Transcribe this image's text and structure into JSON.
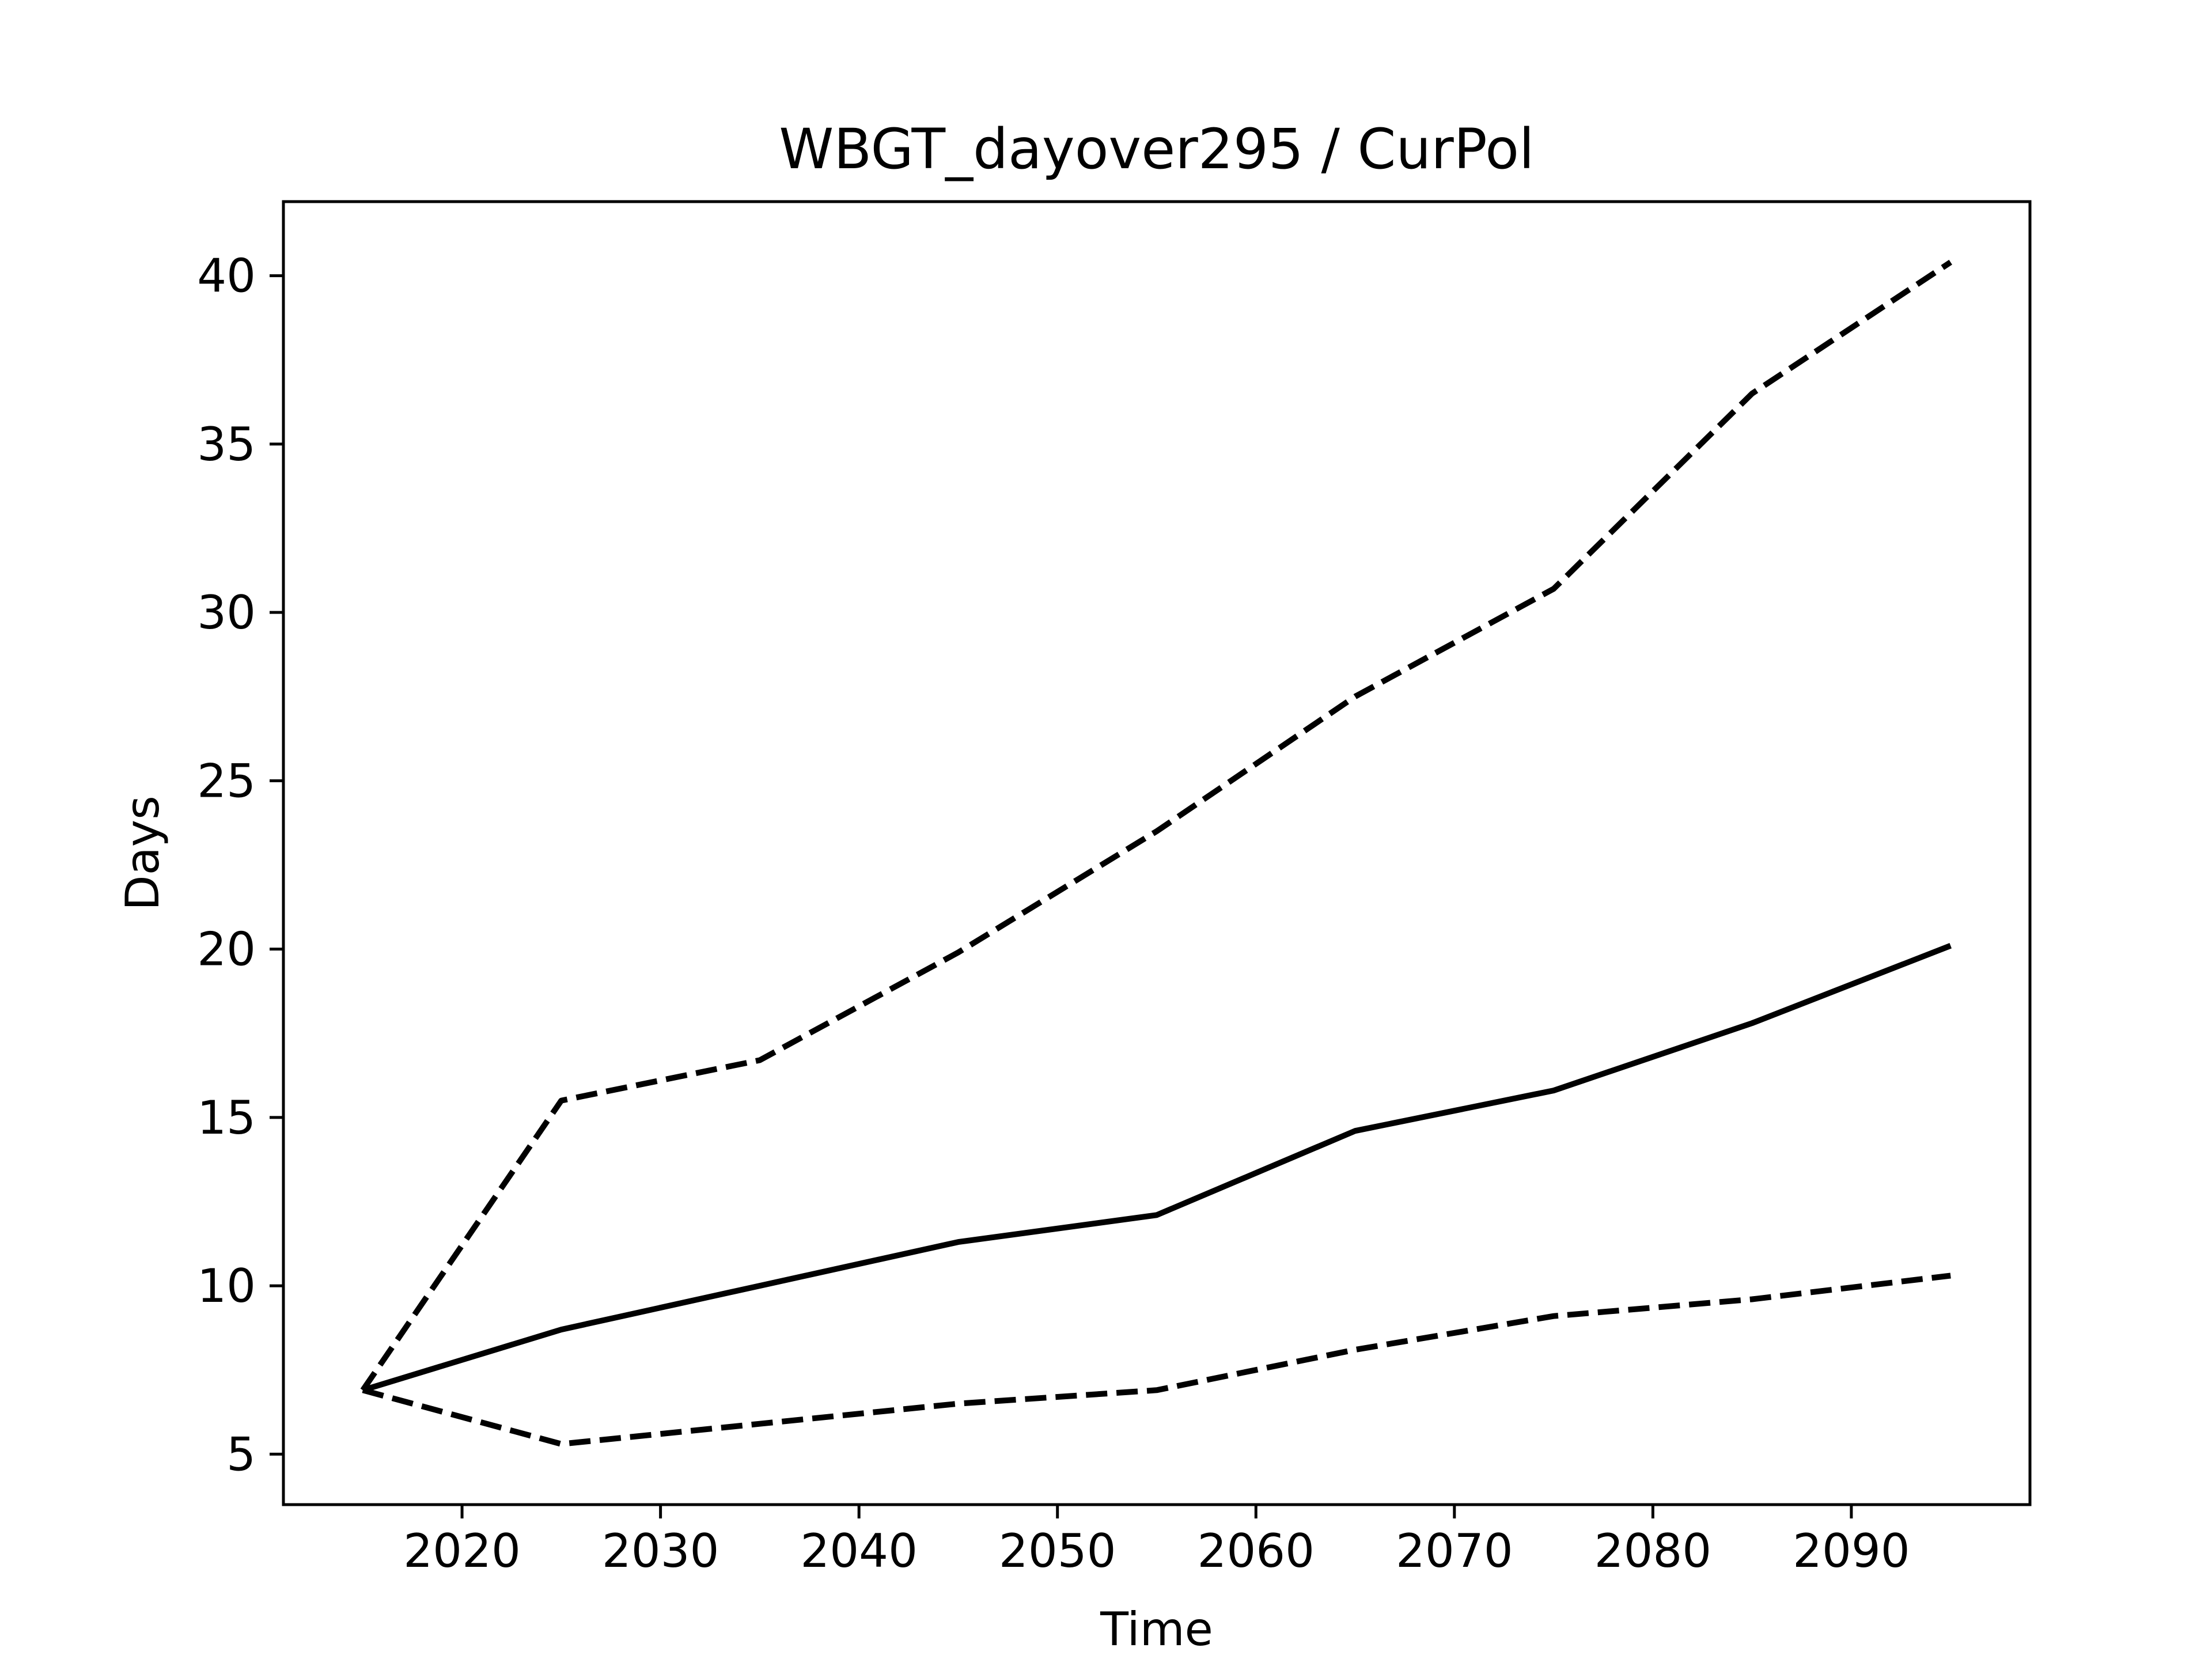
{
  "chart_data": {
    "type": "line",
    "title": "WBGT_dayover295 / CurPol",
    "xlabel": "Time",
    "ylabel": "Days",
    "xlim": [
      2011,
      2099
    ],
    "ylim": [
      3.5,
      42.2
    ],
    "x_ticks": [
      2020,
      2030,
      2040,
      2050,
      2060,
      2070,
      2080,
      2090
    ],
    "y_ticks": [
      5,
      10,
      15,
      20,
      25,
      30,
      35,
      40
    ],
    "grid": false,
    "legend": "none",
    "color": "#000000",
    "x": [
      2015,
      2025,
      2035,
      2045,
      2055,
      2065,
      2075,
      2085,
      2095
    ],
    "series": [
      {
        "style": "dashed",
        "values": [
          6.9,
          15.5,
          16.7,
          19.9,
          23.5,
          27.5,
          30.7,
          36.5,
          40.4
        ]
      },
      {
        "style": "solid",
        "values": [
          6.9,
          8.7,
          10.0,
          11.3,
          12.1,
          14.6,
          15.8,
          17.8,
          20.1
        ]
      },
      {
        "style": "dashed",
        "values": [
          6.9,
          5.3,
          5.9,
          6.5,
          6.9,
          8.1,
          9.1,
          9.6,
          10.3
        ]
      }
    ]
  }
}
